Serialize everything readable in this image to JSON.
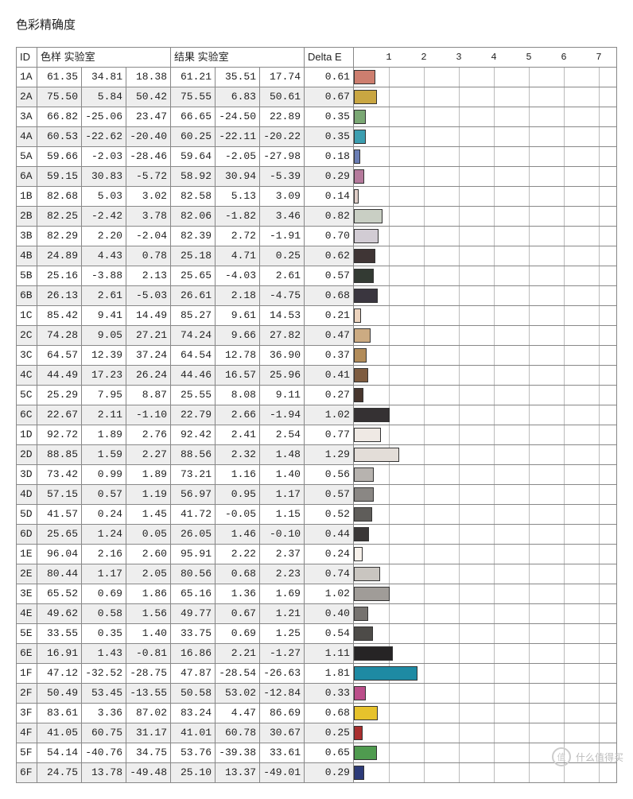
{
  "title": "色彩精确度",
  "headers": {
    "id": "ID",
    "group1": "色样 实验室",
    "group2": "结果 实验室",
    "delta": "Delta E"
  },
  "axis": {
    "min": 0,
    "max": 7.5,
    "ticks": [
      1,
      2,
      3,
      4,
      5,
      6,
      7
    ]
  },
  "rows": [
    {
      "id": "1A",
      "s": [
        61.35,
        34.81,
        18.38
      ],
      "r": [
        61.21,
        35.51,
        17.74
      ],
      "de": 0.61,
      "color": "#cd7e6f"
    },
    {
      "id": "2A",
      "s": [
        75.5,
        5.84,
        50.42
      ],
      "r": [
        75.55,
        6.83,
        50.61
      ],
      "de": 0.67,
      "color": "#c9a642"
    },
    {
      "id": "3A",
      "s": [
        66.82,
        -25.06,
        23.47
      ],
      "r": [
        66.65,
        -24.5,
        22.89
      ],
      "de": 0.35,
      "color": "#7ba874"
    },
    {
      "id": "4A",
      "s": [
        60.53,
        -22.62,
        -20.4
      ],
      "r": [
        60.25,
        -22.11,
        -20.22
      ],
      "de": 0.35,
      "color": "#3c9eb0"
    },
    {
      "id": "5A",
      "s": [
        59.66,
        -2.03,
        -28.46
      ],
      "r": [
        59.64,
        -2.05,
        -27.98
      ],
      "de": 0.18,
      "color": "#6b7eb5"
    },
    {
      "id": "6A",
      "s": [
        59.15,
        30.83,
        -5.72
      ],
      "r": [
        58.92,
        30.94,
        -5.39
      ],
      "de": 0.29,
      "color": "#b57a9c"
    },
    {
      "id": "1B",
      "s": [
        82.68,
        5.03,
        3.02
      ],
      "r": [
        82.58,
        5.13,
        3.09
      ],
      "de": 0.14,
      "color": "#e0cec8"
    },
    {
      "id": "2B",
      "s": [
        82.25,
        -2.42,
        3.78
      ],
      "r": [
        82.06,
        -1.82,
        3.46
      ],
      "de": 0.82,
      "color": "#c9cfc4"
    },
    {
      "id": "3B",
      "s": [
        82.29,
        2.2,
        -2.04
      ],
      "r": [
        82.39,
        2.72,
        -1.91
      ],
      "de": 0.7,
      "color": "#d2ccd4"
    },
    {
      "id": "4B",
      "s": [
        24.89,
        4.43,
        0.78
      ],
      "r": [
        25.18,
        4.71,
        0.25
      ],
      "de": 0.62,
      "color": "#3f3535"
    },
    {
      "id": "5B",
      "s": [
        25.16,
        -3.88,
        2.13
      ],
      "r": [
        25.65,
        -4.03,
        2.61
      ],
      "de": 0.57,
      "color": "#333a33"
    },
    {
      "id": "6B",
      "s": [
        26.13,
        2.61,
        -5.03
      ],
      "r": [
        26.61,
        2.18,
        -4.75
      ],
      "de": 0.68,
      "color": "#3a363f"
    },
    {
      "id": "1C",
      "s": [
        85.42,
        9.41,
        14.49
      ],
      "r": [
        85.27,
        9.61,
        14.53
      ],
      "de": 0.21,
      "color": "#ecd3bd"
    },
    {
      "id": "2C",
      "s": [
        74.28,
        9.05,
        27.21
      ],
      "r": [
        74.24,
        9.66,
        27.82
      ],
      "de": 0.47,
      "color": "#ccab82"
    },
    {
      "id": "3C",
      "s": [
        64.57,
        12.39,
        37.24
      ],
      "r": [
        64.54,
        12.78,
        36.9
      ],
      "de": 0.37,
      "color": "#b28c5a"
    },
    {
      "id": "4C",
      "s": [
        44.49,
        17.23,
        26.24
      ],
      "r": [
        44.46,
        16.57,
        25.96
      ],
      "de": 0.41,
      "color": "#7e5c40"
    },
    {
      "id": "5C",
      "s": [
        25.29,
        7.95,
        8.87
      ],
      "r": [
        25.55,
        8.08,
        9.11
      ],
      "de": 0.27,
      "color": "#47362e"
    },
    {
      "id": "6C",
      "s": [
        22.67,
        2.11,
        -1.1
      ],
      "r": [
        22.79,
        2.66,
        -1.94
      ],
      "de": 1.02,
      "color": "#353133"
    },
    {
      "id": "1D",
      "s": [
        92.72,
        1.89,
        2.76
      ],
      "r": [
        92.42,
        2.41,
        2.54
      ],
      "de": 0.77,
      "color": "#efe9e4"
    },
    {
      "id": "2D",
      "s": [
        88.85,
        1.59,
        2.27
      ],
      "r": [
        88.56,
        2.32,
        1.48
      ],
      "de": 1.29,
      "color": "#e3ddd8"
    },
    {
      "id": "3D",
      "s": [
        73.42,
        0.99,
        1.89
      ],
      "r": [
        73.21,
        1.16,
        1.4
      ],
      "de": 0.56,
      "color": "#b7b3af"
    },
    {
      "id": "4D",
      "s": [
        57.15,
        0.57,
        1.19
      ],
      "r": [
        56.97,
        0.95,
        1.17
      ],
      "de": 0.57,
      "color": "#8a8784"
    },
    {
      "id": "5D",
      "s": [
        41.57,
        0.24,
        1.45
      ],
      "r": [
        41.72,
        -0.05,
        1.15
      ],
      "de": 0.52,
      "color": "#5f5d5a"
    },
    {
      "id": "6D",
      "s": [
        25.65,
        1.24,
        0.05
      ],
      "r": [
        26.05,
        1.46,
        -0.1
      ],
      "de": 0.44,
      "color": "#3a3737"
    },
    {
      "id": "1E",
      "s": [
        96.04,
        2.16,
        2.6
      ],
      "r": [
        95.91,
        2.22,
        2.37
      ],
      "de": 0.24,
      "color": "#f7f1eb"
    },
    {
      "id": "2E",
      "s": [
        80.44,
        1.17,
        2.05
      ],
      "r": [
        80.56,
        0.68,
        2.23
      ],
      "de": 0.74,
      "color": "#c9c5c0"
    },
    {
      "id": "3E",
      "s": [
        65.52,
        0.69,
        1.86
      ],
      "r": [
        65.16,
        1.36,
        1.69
      ],
      "de": 1.02,
      "color": "#a09c98"
    },
    {
      "id": "4E",
      "s": [
        49.62,
        0.58,
        1.56
      ],
      "r": [
        49.77,
        0.67,
        1.21
      ],
      "de": 0.4,
      "color": "#75726f"
    },
    {
      "id": "5E",
      "s": [
        33.55,
        0.35,
        1.4
      ],
      "r": [
        33.75,
        0.69,
        1.25
      ],
      "de": 0.54,
      "color": "#4d4b48"
    },
    {
      "id": "6E",
      "s": [
        16.91,
        1.43,
        -0.81
      ],
      "r": [
        16.86,
        2.21,
        -1.27
      ],
      "de": 1.11,
      "color": "#262425"
    },
    {
      "id": "1F",
      "s": [
        47.12,
        -32.52,
        -28.75
      ],
      "r": [
        47.87,
        -28.54,
        -26.63
      ],
      "de": 1.81,
      "color": "#1e8aa3"
    },
    {
      "id": "2F",
      "s": [
        50.49,
        53.45,
        -13.55
      ],
      "r": [
        50.58,
        53.02,
        -12.84
      ],
      "de": 0.33,
      "color": "#bb4e8a"
    },
    {
      "id": "3F",
      "s": [
        83.61,
        3.36,
        87.02
      ],
      "r": [
        83.24,
        4.47,
        86.69
      ],
      "de": 0.68,
      "color": "#e6c22c"
    },
    {
      "id": "4F",
      "s": [
        41.05,
        60.75,
        31.17
      ],
      "r": [
        41.01,
        60.78,
        30.67
      ],
      "de": 0.25,
      "color": "#a82e2e"
    },
    {
      "id": "5F",
      "s": [
        54.14,
        -40.76,
        34.75
      ],
      "r": [
        53.76,
        -39.38,
        33.61
      ],
      "de": 0.65,
      "color": "#4f9b4f"
    },
    {
      "id": "6F",
      "s": [
        24.75,
        13.78,
        -49.48
      ],
      "r": [
        25.1,
        13.37,
        -49.01
      ],
      "de": 0.29,
      "color": "#2c3a78"
    }
  ],
  "watermark": {
    "logo": "值",
    "text": "什么值得买"
  }
}
